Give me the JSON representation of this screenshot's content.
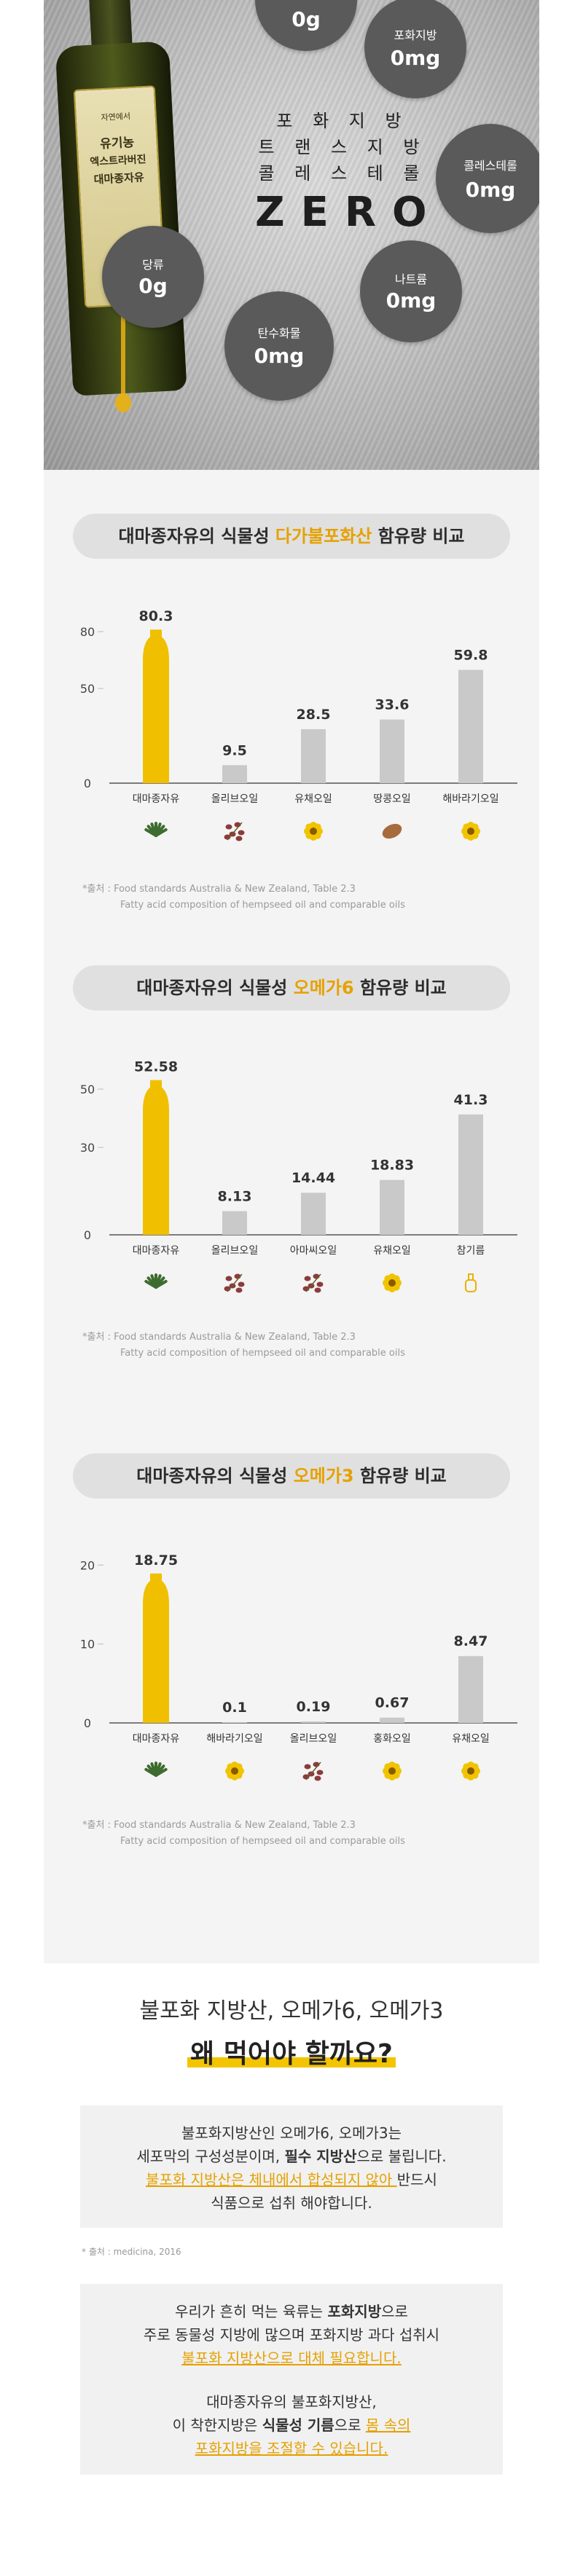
{
  "hero": {
    "title_lines": [
      "포 화 지 방",
      "트 랜 스 지 방",
      "콜 레 스 테 롤"
    ],
    "zero": "ZERO",
    "bottle_label": [
      "자연에서",
      "유기농",
      "엑스트라버진",
      "대마종자유"
    ],
    "bubbles": [
      {
        "label": "",
        "value": "0g"
      },
      {
        "label": "포화지방",
        "value": "0mg"
      },
      {
        "label": "콜레스테롤",
        "value": "0mg"
      },
      {
        "label": "나트륨",
        "value": "0mg"
      },
      {
        "label": "탄수화물",
        "value": "0mg"
      },
      {
        "label": "당류",
        "value": "0g"
      }
    ]
  },
  "chart_data": [
    {
      "type": "bar",
      "title_pre": "대마종자유의 식물성 ",
      "title_hl": "다가불포화산",
      "title_post": " 함유량 비교",
      "categories": [
        "대마종자유",
        "올리브오일",
        "유채오일",
        "땅콩오일",
        "해바라기오일"
      ],
      "values": [
        80.3,
        9.5,
        28.5,
        33.6,
        59.8
      ],
      "value_labels": [
        "80.3",
        "9.5",
        "28.5",
        "33.6",
        "59.8"
      ],
      "yticks": [
        0,
        50,
        80
      ],
      "ylim": [
        0,
        100
      ],
      "icons": [
        "hemp-leaf-icon",
        "olive-icon",
        "rapeseed-flower-icon",
        "peanut-icon",
        "sunflower-icon"
      ],
      "footnote": [
        "*출처 : Food standards Australia & New Zealand, Table 2.3",
        "Fatty acid composition of hempseed oil and comparable oils"
      ]
    },
    {
      "type": "bar",
      "title_pre": "대마종자유의 식물성 ",
      "title_hl": "오메가6",
      "title_post": " 함유량 비교",
      "categories": [
        "대마종자유",
        "올리브오일",
        "아마씨오일",
        "유채오일",
        "참기름"
      ],
      "values": [
        52.58,
        8.13,
        14.44,
        18.83,
        41.3
      ],
      "value_labels": [
        "52.58",
        "8.13",
        "14.44",
        "18.83",
        "41.3"
      ],
      "yticks": [
        0,
        30,
        50
      ],
      "ylim": [
        0,
        65
      ],
      "icons": [
        "hemp-leaf-icon",
        "olive-icon",
        "flaxseed-icon",
        "rapeseed-flower-icon",
        "sesame-oil-icon"
      ],
      "footnote": [
        "*출처 : Food standards Australia & New Zealand, Table 2.3",
        "Fatty acid composition of hempseed oil and comparable oils"
      ]
    },
    {
      "type": "bar",
      "title_pre": "대마종자유의 식물성 ",
      "title_hl": "오메가3",
      "title_post": " 함유량 비교",
      "categories": [
        "대마종자유",
        "해바라기오일",
        "올리브오일",
        "홍화오일",
        "유채오일"
      ],
      "values": [
        18.75,
        0.1,
        0.19,
        0.67,
        8.47
      ],
      "value_labels": [
        "18.75",
        "0.1",
        "0.19",
        "0.67",
        "8.47"
      ],
      "yticks": [
        0,
        10,
        20
      ],
      "ylim": [
        0,
        24
      ],
      "icons": [
        "hemp-leaf-icon",
        "sunflower-icon",
        "olive-icon",
        "safflower-icon",
        "rapeseed-flower-icon"
      ],
      "footnote": [
        "*출처 : Food standards Australia & New Zealand, Table 2.3",
        "Fatty acid composition of hempseed oil and comparable oils"
      ]
    }
  ],
  "why": {
    "subtitle": "불포화 지방산, 오메가6, 오메가3",
    "title": "왜 먹어야 할까요?"
  },
  "box1": {
    "l1": "불포화지방산인 오메가6, 오메가3는",
    "l2_pre": "세포막의 구성성분이며, ",
    "l2_b": "필수 지방산",
    "l2_post": "으로 불립니다.",
    "l3_o": "불포화 지방산은 체내에서 합성되지 않아 ",
    "l3_post": "반드시",
    "l4": "식품으로 섭취 해야합니다."
  },
  "note": "* 출처 : medicina, 2016",
  "box2": {
    "p1_l1_pre": "우리가 흔히 먹는 육류는 ",
    "p1_l1_b": "포화지방",
    "p1_l1_post": "으로",
    "p1_l2": "주로 동물성 지방에 많으며 포화지방 과다 섭취시",
    "p1_l3_o": "불포화 지방산으로 대체 필요합니다.",
    "p2_l1": "대마종자유의 불포화지방산,",
    "p2_l2_pre": "이 착한지방은 ",
    "p2_l2_b": "식물성 기름",
    "p2_l2_mid": "으로 ",
    "p2_l2_o": "몸 속의",
    "p2_l3_o": "포화지방을 조절할 수 있습니다."
  },
  "colors": {
    "hemp_bar": "#f0c000",
    "other_bar": "#c9c9c9",
    "highlight": "#e6a100",
    "pill": "#e0e0e0",
    "section_bg": "#f4f4f4"
  }
}
